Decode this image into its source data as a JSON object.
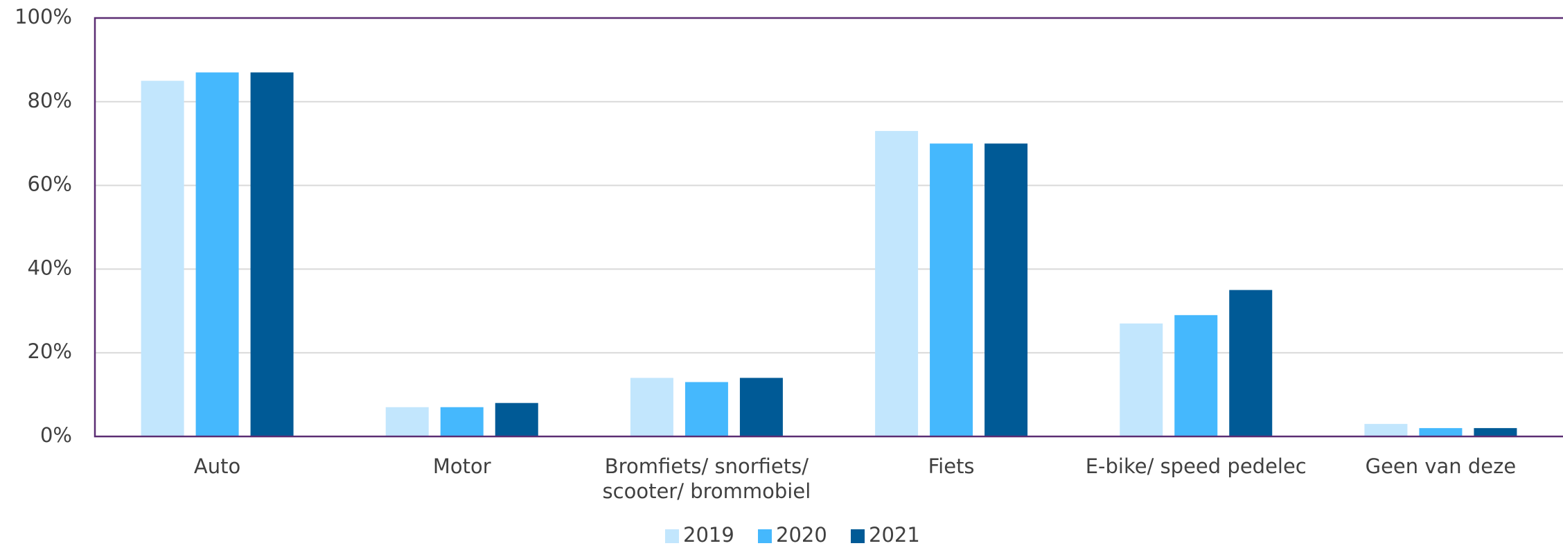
{
  "chart_data": {
    "type": "bar",
    "categories": [
      "Auto",
      "Motor",
      "Bromfiets/ snorfiets/ scooter/ brommobiel",
      "Fiets",
      "E-bike/ speed pedelec",
      "Geen van deze"
    ],
    "series": [
      {
        "name": "2019",
        "color": "#c2e6fd",
        "values": [
          85,
          7,
          14,
          73,
          27,
          3
        ]
      },
      {
        "name": "2020",
        "color": "#45b8fd",
        "values": [
          87,
          7,
          13,
          70,
          29,
          2
        ]
      },
      {
        "name": "2021",
        "color": "#005a96",
        "values": [
          87,
          8,
          14,
          70,
          35,
          2
        ]
      }
    ],
    "ylim": [
      0,
      100
    ],
    "yticks": [
      {
        "value": 0,
        "label": "0%"
      },
      {
        "value": 20,
        "label": "20%"
      },
      {
        "value": 40,
        "label": "40%"
      },
      {
        "value": 60,
        "label": "60%"
      },
      {
        "value": 80,
        "label": "80%"
      },
      {
        "value": 100,
        "label": "100%"
      }
    ],
    "grid": true,
    "legend": "bottom"
  }
}
